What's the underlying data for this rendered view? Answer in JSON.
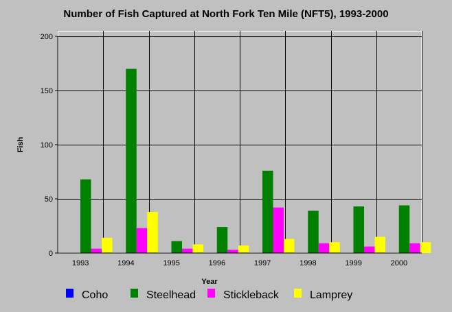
{
  "chart_data": {
    "type": "bar",
    "title": "Number of Fish Captured at North Fork Ten Mile (NFT5), 1993-2000",
    "xlabel": "Year",
    "ylabel": "Fish",
    "ylim": [
      0,
      200
    ],
    "yticks": [
      0,
      50,
      100,
      150,
      200
    ],
    "grid": true,
    "legend_position": "bottom",
    "categories": [
      "1993",
      "1994",
      "1995",
      "1996",
      "1997",
      "1998",
      "1999",
      "2000"
    ],
    "series": [
      {
        "name": "Coho",
        "color": "#0000ff",
        "values": [
          0,
          0,
          0,
          0,
          0,
          0,
          0,
          0
        ]
      },
      {
        "name": "Steelhead",
        "color": "#008000",
        "values": [
          68,
          170,
          11,
          24,
          76,
          39,
          43,
          44
        ]
      },
      {
        "name": "Stickleback",
        "color": "#ff00ff",
        "values": [
          4,
          23,
          4,
          3,
          42,
          9,
          6,
          9
        ]
      },
      {
        "name": "Lamprey",
        "color": "#ffff00",
        "values": [
          14,
          38,
          8,
          7,
          13,
          10,
          15,
          10
        ]
      }
    ]
  }
}
